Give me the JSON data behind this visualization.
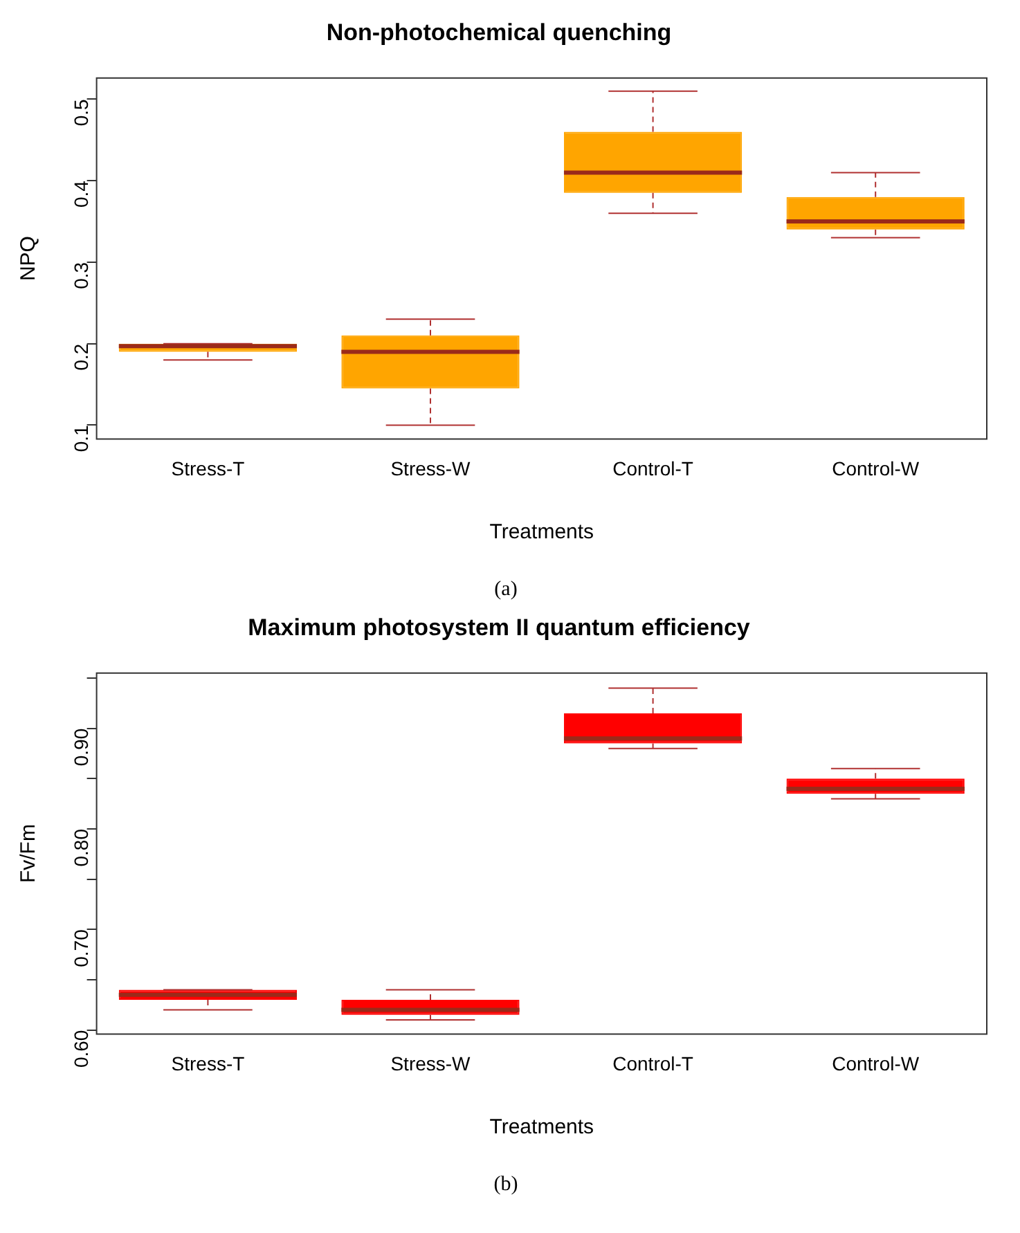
{
  "chart_data": [
    {
      "type": "box",
      "title": "Non-photochemical quenching",
      "xlabel": "Treatments",
      "ylabel": "NPQ",
      "categories": [
        "Stress-T",
        "Stress-W",
        "Control-T",
        "Control-W"
      ],
      "series": [
        {
          "color": "#ffa500",
          "boxes": [
            {
              "low": 0.18,
              "q1": 0.19,
              "median": 0.197,
              "q3": 0.2,
              "high": 0.2
            },
            {
              "low": 0.1,
              "q1": 0.145,
              "median": 0.19,
              "q3": 0.21,
              "high": 0.23
            },
            {
              "low": 0.36,
              "q1": 0.385,
              "median": 0.41,
              "q3": 0.46,
              "high": 0.51
            },
            {
              "low": 0.33,
              "q1": 0.34,
              "median": 0.35,
              "q3": 0.38,
              "high": 0.41
            }
          ]
        }
      ],
      "ylim": [
        0.083,
        0.526
      ],
      "yticks": [
        0.1,
        0.2,
        0.3,
        0.4,
        0.5
      ],
      "grid": false,
      "legend": false,
      "annotations": [
        "(a)"
      ]
    },
    {
      "type": "box",
      "title": "Maximum photosystem II quantum efficiency",
      "xlabel": "Treatments",
      "ylabel": "Fv/Fm",
      "categories": [
        "Stress-T",
        "Stress-W",
        "Control-T",
        "Control-W"
      ],
      "series": [
        {
          "color": "#ff0000",
          "boxes": [
            {
              "low": 0.62,
              "q1": 0.63,
              "median": 0.635,
              "q3": 0.64,
              "high": 0.64
            },
            {
              "low": 0.61,
              "q1": 0.615,
              "median": 0.62,
              "q3": 0.63,
              "high": 0.64
            },
            {
              "low": 0.88,
              "q1": 0.885,
              "median": 0.89,
              "q3": 0.915,
              "high": 0.94
            },
            {
              "low": 0.83,
              "q1": 0.835,
              "median": 0.84,
              "q3": 0.85,
              "high": 0.86
            }
          ]
        }
      ],
      "ylim": [
        0.596,
        0.955
      ],
      "yticks": [
        {
          "value": 0.6,
          "label": "0.60"
        },
        {
          "value": 0.65,
          "label": null
        },
        {
          "value": 0.7,
          "label": "0.70"
        },
        {
          "value": 0.75,
          "label": null
        },
        {
          "value": 0.8,
          "label": "0.80"
        },
        {
          "value": 0.85,
          "label": null
        },
        {
          "value": 0.9,
          "label": "0.90"
        },
        {
          "value": 0.95,
          "label": null
        }
      ],
      "grid": false,
      "legend": false,
      "annotations": [
        "(b)"
      ]
    }
  ]
}
